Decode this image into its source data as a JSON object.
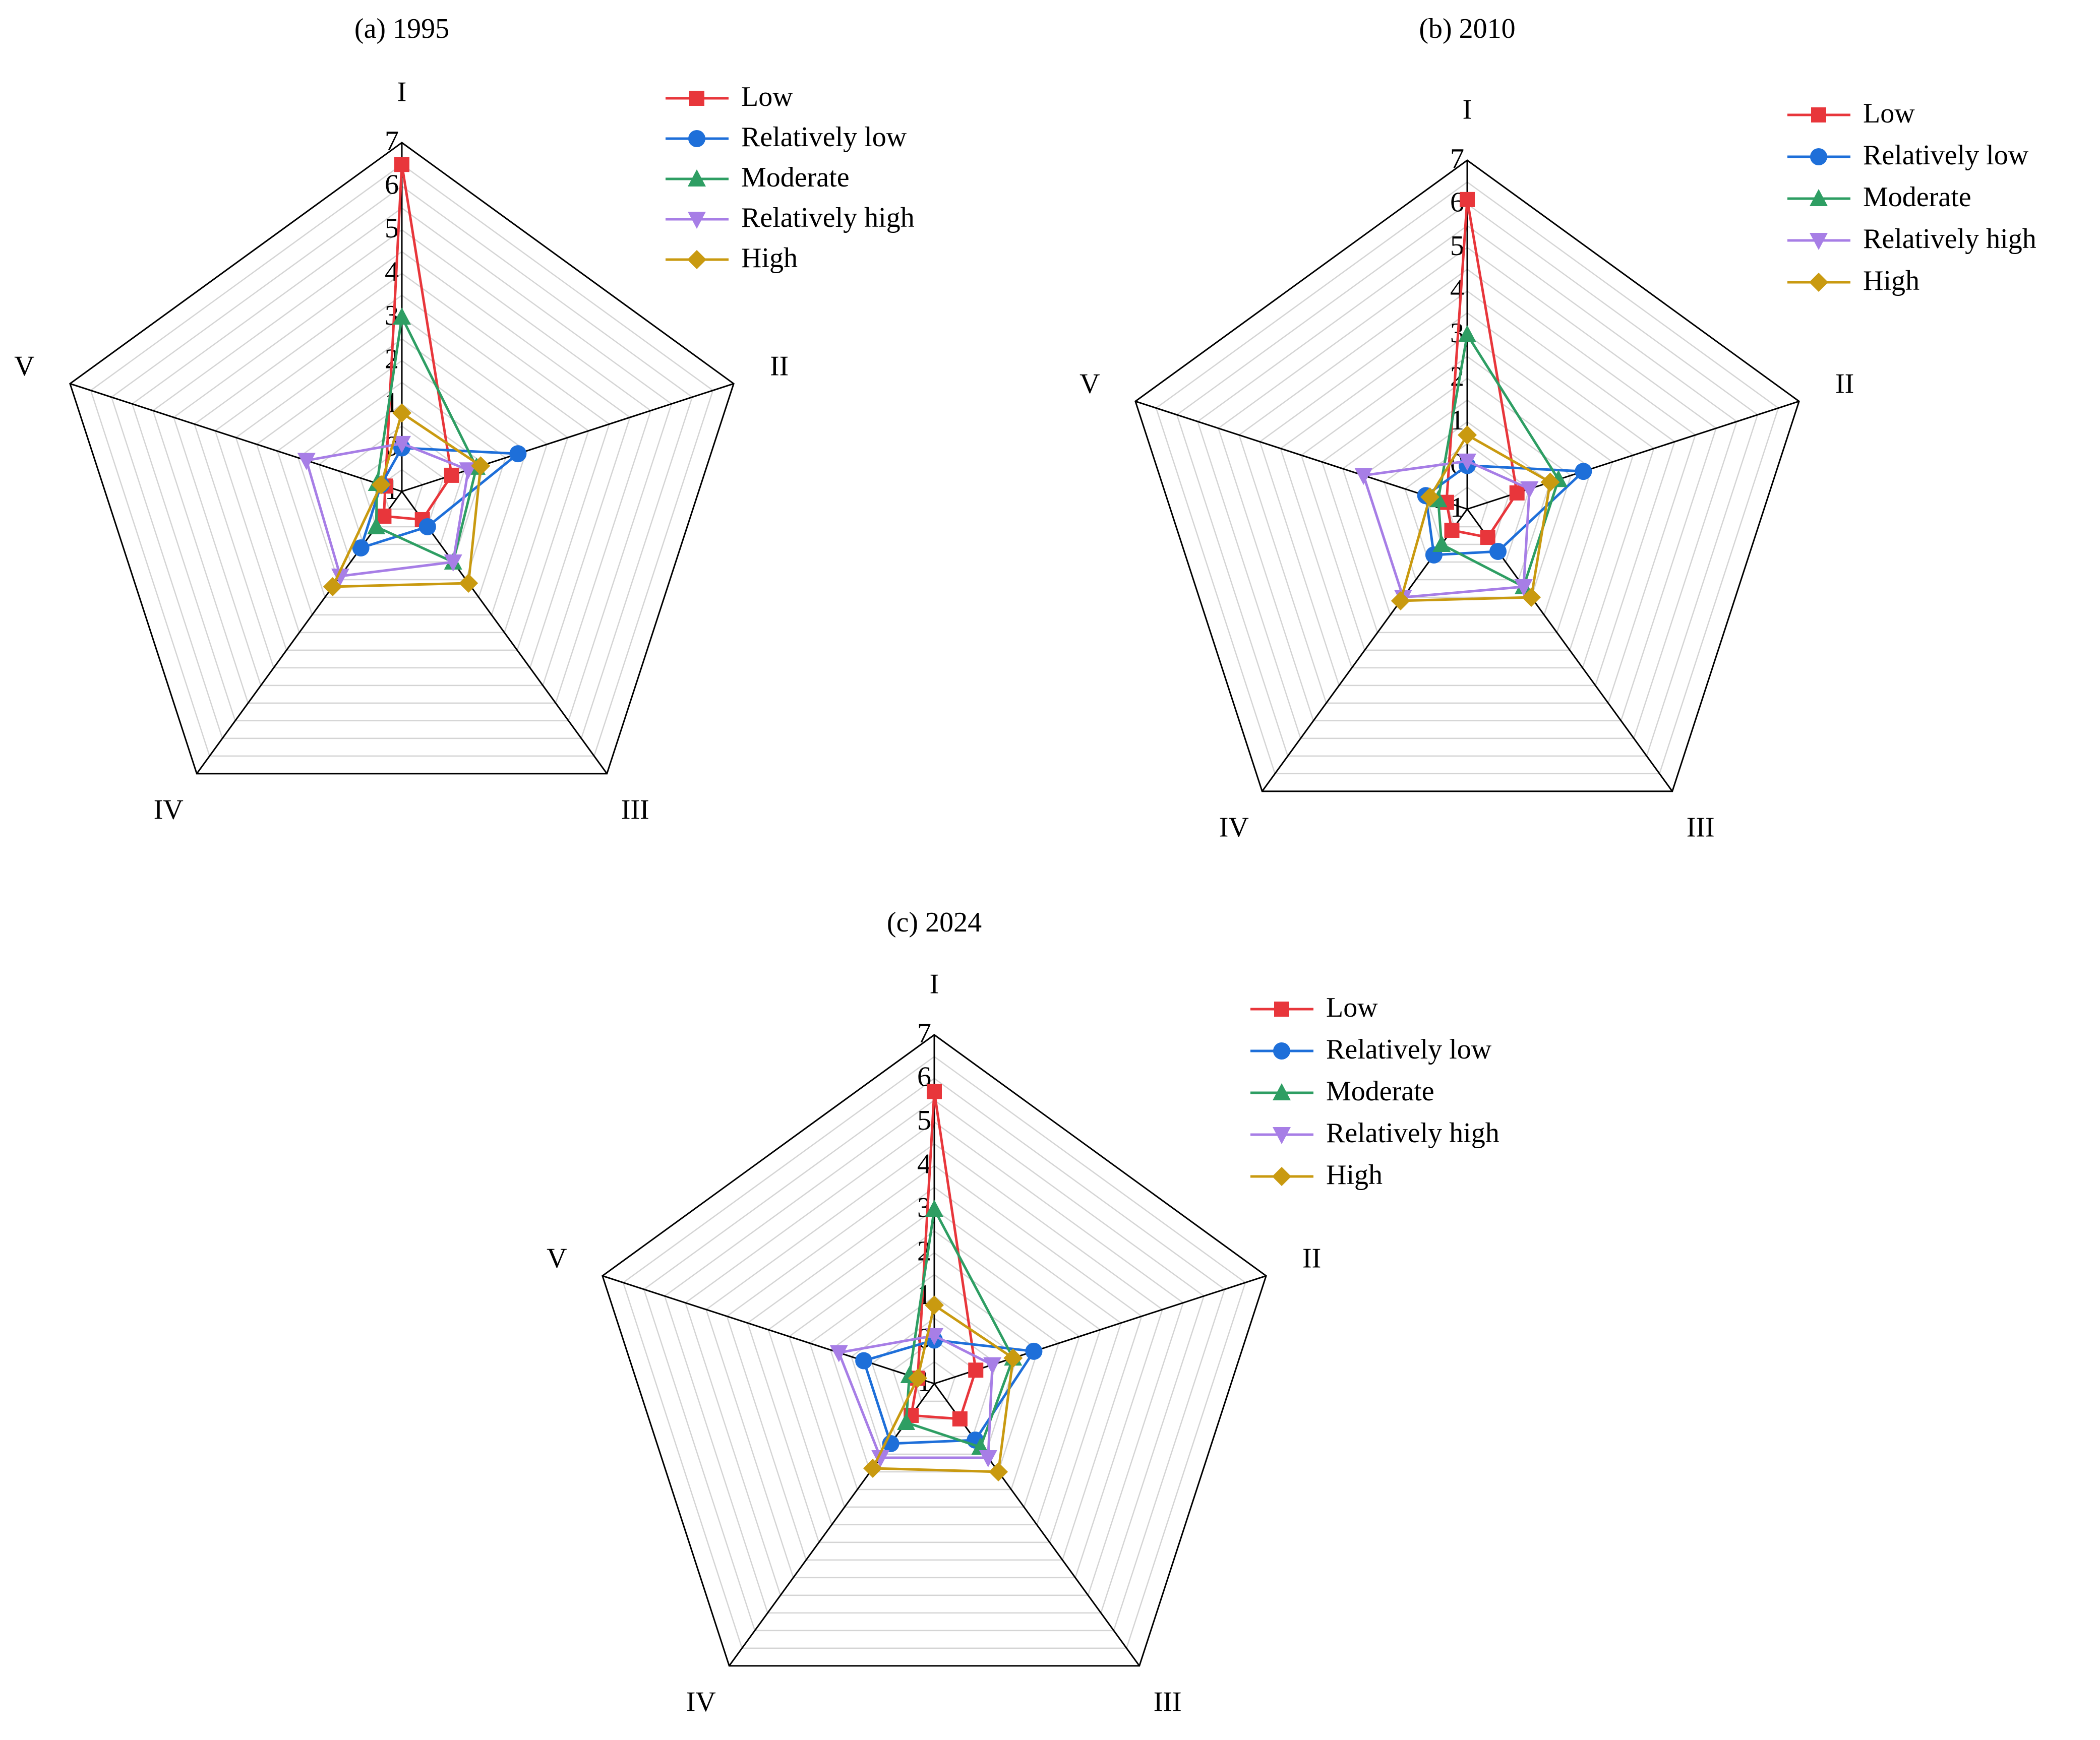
{
  "colors": {
    "Low": "#e8363b",
    "Relatively low": "#1e6fd9",
    "Moderate": "#2e9e63",
    "Relatively high": "#a77ee6",
    "High": "#c99a10"
  },
  "markers": {
    "Low": "square",
    "Relatively low": "circle",
    "Moderate": "triangle-up",
    "Relatively high": "triangle-down",
    "High": "diamond"
  },
  "chart_data": [
    {
      "type": "radar",
      "title": "(a) 1995",
      "axes": [
        "I",
        "II",
        "III",
        "IV",
        "V"
      ],
      "rlim": [
        -1,
        7
      ],
      "ticks": [
        "-1",
        "0",
        "1",
        "2",
        "3",
        "4",
        "5",
        "6",
        "7"
      ],
      "grid": true,
      "legend": "top-right",
      "series": [
        {
          "name": "Low",
          "values": [
            6.5,
            0.2,
            -0.2,
            -0.3,
            -0.6
          ]
        },
        {
          "name": "Relatively low",
          "values": [
            0.0,
            1.8,
            0.0,
            0.6,
            -0.5
          ]
        },
        {
          "name": "Moderate",
          "values": [
            3.0,
            0.8,
            1.0,
            0.0,
            -0.4
          ]
        },
        {
          "name": "Relatively high",
          "values": [
            0.1,
            0.6,
            1.0,
            1.4,
            1.3
          ]
        },
        {
          "name": "High",
          "values": [
            0.8,
            0.9,
            1.6,
            1.7,
            -0.5
          ]
        }
      ]
    },
    {
      "type": "radar",
      "title": "(b) 2010",
      "axes": [
        "I",
        "II",
        "III",
        "IV",
        "V"
      ],
      "rlim": [
        -1,
        7
      ],
      "ticks": [
        "-1",
        "0",
        "1",
        "2",
        "3",
        "4",
        "5",
        "6",
        "7"
      ],
      "grid": true,
      "legend": "top-right",
      "series": [
        {
          "name": "Low",
          "values": [
            6.1,
            0.2,
            -0.2,
            -0.4,
            -0.5
          ]
        },
        {
          "name": "Relatively low",
          "values": [
            0.0,
            1.8,
            0.2,
            0.3,
            0.0
          ]
        },
        {
          "name": "Moderate",
          "values": [
            3.0,
            1.2,
            1.2,
            0.0,
            -0.3
          ]
        },
        {
          "name": "Relatively high",
          "values": [
            0.1,
            0.5,
            1.2,
            1.5,
            1.5
          ]
        },
        {
          "name": "High",
          "values": [
            0.7,
            1.0,
            1.5,
            1.6,
            -0.1
          ]
        }
      ]
    },
    {
      "type": "radar",
      "title": "(c) 2024",
      "axes": [
        "I",
        "II",
        "III",
        "IV",
        "V"
      ],
      "rlim": [
        -1,
        7
      ],
      "ticks": [
        "-1",
        "0",
        "1",
        "2",
        "3",
        "4",
        "5",
        "6",
        "7"
      ],
      "grid": true,
      "legend": "top-right",
      "series": [
        {
          "name": "Low",
          "values": [
            5.7,
            0.0,
            0.0,
            -0.1,
            -0.6
          ]
        },
        {
          "name": "Relatively low",
          "values": [
            0.0,
            1.4,
            0.6,
            0.7,
            0.7
          ]
        },
        {
          "name": "Moderate",
          "values": [
            3.0,
            0.9,
            0.8,
            0.1,
            -0.4
          ]
        },
        {
          "name": "Relatively high",
          "values": [
            0.1,
            0.4,
            1.1,
            1.1,
            1.3
          ]
        },
        {
          "name": "High",
          "values": [
            0.8,
            0.9,
            1.5,
            1.4,
            -0.6
          ]
        }
      ]
    }
  ]
}
